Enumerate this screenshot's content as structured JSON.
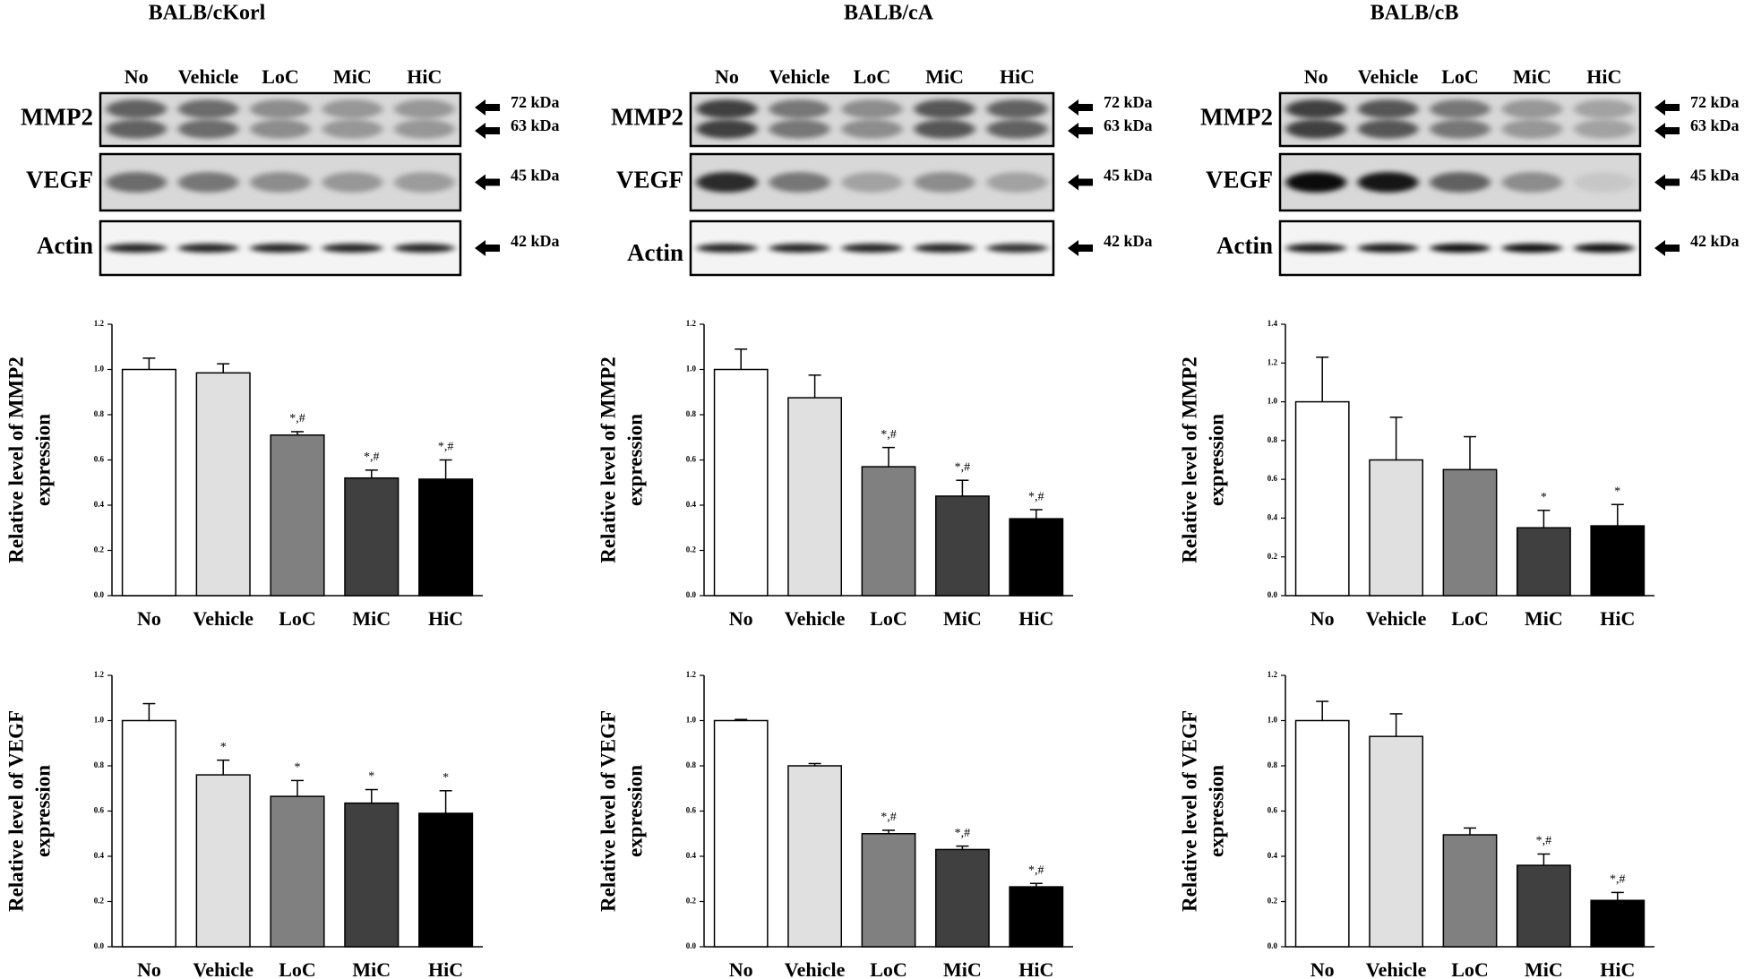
{
  "panels": [
    {
      "title": "BALB/cKorl",
      "lanes": [
        "No",
        "Vehicle",
        "LoC",
        "MiC",
        "HiC"
      ],
      "rows": [
        {
          "label": "MMP2",
          "markers": [
            "72 kDa",
            "63 kDa"
          ]
        },
        {
          "label": "VEGF",
          "markers": [
            "45 kDa"
          ]
        },
        {
          "label": "Actin",
          "markers": [
            "42 kDa"
          ]
        }
      ]
    },
    {
      "title": "BALB/cA",
      "lanes": [
        "No",
        "Vehicle",
        "LoC",
        "MiC",
        "HiC"
      ],
      "rows": [
        {
          "label": "MMP2",
          "markers": [
            "72 kDa",
            "63 kDa"
          ]
        },
        {
          "label": "VEGF",
          "markers": [
            "45 kDa"
          ]
        },
        {
          "label": "Actin",
          "markers": [
            "42 kDa"
          ]
        }
      ]
    },
    {
      "title": "BALB/cB",
      "lanes": [
        "No",
        "Vehicle",
        "LoC",
        "MiC",
        "HiC"
      ],
      "rows": [
        {
          "label": "MMP2",
          "markers": [
            "72 kDa",
            "63 kDa"
          ]
        },
        {
          "label": "VEGF",
          "markers": [
            "45 kDa"
          ]
        },
        {
          "label": "Actin",
          "markers": [
            "42 kDa"
          ]
        }
      ]
    }
  ],
  "chart_data": [
    {
      "type": "bar",
      "ylabel": [
        "Relative  level of MMP2",
        "expression"
      ],
      "categories": [
        "No",
        "Vehicle",
        "LoC",
        "MiC",
        "HiC"
      ],
      "colors": [
        "#ffffff",
        "#e0e0e0",
        "#808080",
        "#404040",
        "#000000"
      ],
      "values": [
        1.0,
        0.985,
        0.71,
        0.52,
        0.515
      ],
      "errors": [
        0.05,
        0.04,
        0.015,
        0.035,
        0.085
      ],
      "annotations": [
        null,
        null,
        "*,#",
        "*,#",
        "*,#"
      ],
      "ylim": [
        0,
        1.2
      ],
      "yticks": [
        {
          "value": 0,
          "label": "0.0"
        },
        {
          "value": 0.2,
          "label": "0.2"
        },
        {
          "value": 0.4,
          "label": "0.4"
        },
        {
          "value": 0.6,
          "label": "0.6"
        },
        {
          "value": 0.8,
          "label": "0.8"
        },
        {
          "value": 1.0,
          "label": "1.0"
        },
        {
          "value": 1.2,
          "label": "1.2"
        }
      ]
    },
    {
      "type": "bar",
      "ylabel": [
        "Relative  level of MMP2",
        "expression"
      ],
      "categories": [
        "No",
        "Vehicle",
        "LoC",
        "MiC",
        "HiC"
      ],
      "colors": [
        "#ffffff",
        "#e0e0e0",
        "#808080",
        "#404040",
        "#000000"
      ],
      "values": [
        1.0,
        0.875,
        0.57,
        0.44,
        0.34
      ],
      "errors": [
        0.09,
        0.1,
        0.085,
        0.07,
        0.04
      ],
      "annotations": [
        null,
        null,
        "*,#",
        "*,#",
        "*,#"
      ],
      "ylim": [
        0,
        1.2
      ],
      "yticks": [
        {
          "value": 0,
          "label": "0.0"
        },
        {
          "value": 0.2,
          "label": "0.2"
        },
        {
          "value": 0.4,
          "label": "0.4"
        },
        {
          "value": 0.6,
          "label": "0.6"
        },
        {
          "value": 0.8,
          "label": "0.8"
        },
        {
          "value": 1.0,
          "label": "1.0"
        },
        {
          "value": 1.2,
          "label": "1.2"
        }
      ]
    },
    {
      "type": "bar",
      "ylabel": [
        "Relative  level of MMP2",
        "expression"
      ],
      "categories": [
        "No",
        "Vehicle",
        "LoC",
        "MiC",
        "HiC"
      ],
      "colors": [
        "#ffffff",
        "#e0e0e0",
        "#808080",
        "#404040",
        "#000000"
      ],
      "values": [
        1.0,
        0.7,
        0.65,
        0.35,
        0.36
      ],
      "errors": [
        0.23,
        0.22,
        0.17,
        0.09,
        0.11
      ],
      "annotations": [
        null,
        null,
        null,
        "*",
        "*"
      ],
      "ylim": [
        0,
        1.4
      ],
      "yticks": [
        {
          "value": 0,
          "label": "0.0"
        },
        {
          "value": 0.2,
          "label": "0.2"
        },
        {
          "value": 0.4,
          "label": "0.4"
        },
        {
          "value": 0.6,
          "label": "0.6"
        },
        {
          "value": 0.8,
          "label": "0.8"
        },
        {
          "value": 1.0,
          "label": "1.0"
        },
        {
          "value": 1.2,
          "label": "1.2"
        },
        {
          "value": 1.4,
          "label": "1.4"
        }
      ]
    },
    {
      "type": "bar",
      "ylabel": [
        "Relative  level of VEGF",
        "expression"
      ],
      "categories": [
        "No",
        "Vehicle",
        "LoC",
        "MiC",
        "HiC"
      ],
      "colors": [
        "#ffffff",
        "#e0e0e0",
        "#808080",
        "#404040",
        "#000000"
      ],
      "values": [
        1.0,
        0.76,
        0.665,
        0.635,
        0.59
      ],
      "errors": [
        0.075,
        0.065,
        0.07,
        0.06,
        0.1
      ],
      "annotations": [
        null,
        "*",
        "*",
        "*",
        "*"
      ],
      "ylim": [
        0,
        1.2
      ],
      "yticks": [
        {
          "value": 0,
          "label": "0.0"
        },
        {
          "value": 0.2,
          "label": "0.2"
        },
        {
          "value": 0.4,
          "label": "0.4"
        },
        {
          "value": 0.6,
          "label": "0.6"
        },
        {
          "value": 0.8,
          "label": "0.8"
        },
        {
          "value": 1.0,
          "label": "1.0"
        },
        {
          "value": 1.2,
          "label": "1.2"
        }
      ]
    },
    {
      "type": "bar",
      "ylabel": [
        "Relative  level of VEGF",
        "expression"
      ],
      "categories": [
        "No",
        "Vehicle",
        "LoC",
        "MiC",
        "HiC"
      ],
      "colors": [
        "#ffffff",
        "#e0e0e0",
        "#808080",
        "#404040",
        "#000000"
      ],
      "values": [
        1.0,
        0.8,
        0.5,
        0.43,
        0.265
      ],
      "errors": [
        0.005,
        0.01,
        0.015,
        0.015,
        0.015
      ],
      "annotations": [
        null,
        null,
        "*,#",
        "*,#",
        "*,#"
      ],
      "ylim": [
        0,
        1.2
      ],
      "yticks": [
        {
          "value": 0,
          "label": "0.0"
        },
        {
          "value": 0.2,
          "label": "0.2"
        },
        {
          "value": 0.4,
          "label": "0.4"
        },
        {
          "value": 0.6,
          "label": "0.6"
        },
        {
          "value": 0.8,
          "label": "0.8"
        },
        {
          "value": 1.0,
          "label": "1.0"
        },
        {
          "value": 1.2,
          "label": "1.2"
        }
      ]
    },
    {
      "type": "bar",
      "ylabel": [
        "Relative  level of VEGF",
        "expression"
      ],
      "categories": [
        "No",
        "Vehicle",
        "LoC",
        "MiC",
        "HiC"
      ],
      "colors": [
        "#ffffff",
        "#e0e0e0",
        "#808080",
        "#404040",
        "#000000"
      ],
      "values": [
        1.0,
        0.93,
        0.495,
        0.36,
        0.205
      ],
      "errors": [
        0.085,
        0.1,
        0.03,
        0.05,
        0.035
      ],
      "annotations": [
        null,
        null,
        null,
        "*,#",
        "*,#"
      ],
      "ylim": [
        0,
        1.2
      ],
      "yticks": [
        {
          "value": 0,
          "label": "0.0"
        },
        {
          "value": 0.2,
          "label": "0.2"
        },
        {
          "value": 0.4,
          "label": "0.4"
        },
        {
          "value": 0.6,
          "label": "0.6"
        },
        {
          "value": 0.8,
          "label": "0.8"
        },
        {
          "value": 1.0,
          "label": "1.0"
        },
        {
          "value": 1.2,
          "label": "1.2"
        }
      ]
    }
  ]
}
